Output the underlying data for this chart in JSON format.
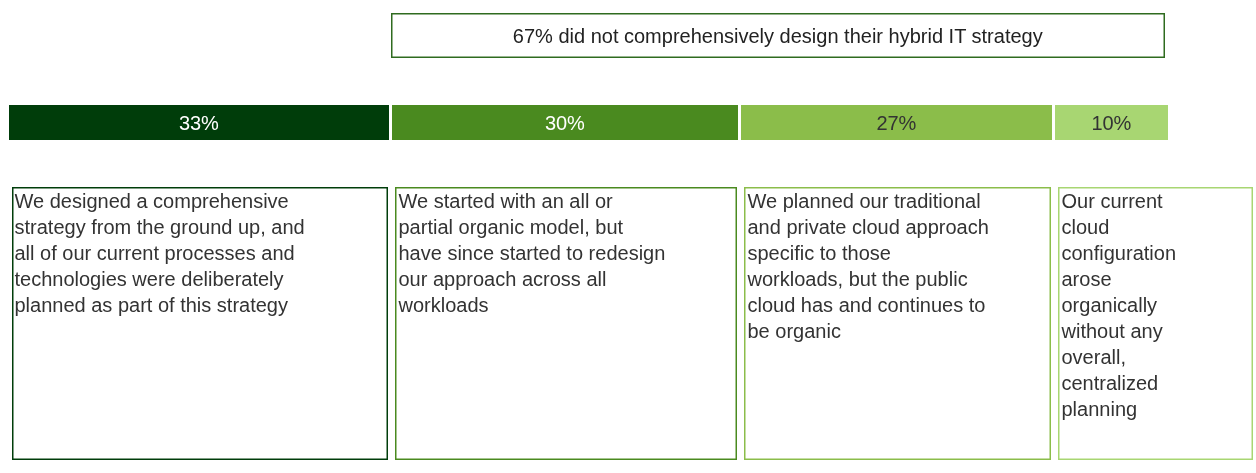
{
  "chart_data": {
    "type": "bar",
    "orientation": "horizontal",
    "stacked": true,
    "categories": [
      null
    ],
    "xlim": [
      0,
      100
    ],
    "tick_labels": false,
    "legend": false,
    "series": [
      {
        "color": "#003d0a",
        "values": [
          33
        ],
        "value_labels": [
          "33%"
        ]
      },
      {
        "color": "#4a8a1f",
        "values": [
          30
        ],
        "value_labels": [
          "30%"
        ]
      },
      {
        "color": "#8bbd4a",
        "values": [
          27
        ],
        "value_labels": [
          "27%"
        ]
      },
      {
        "color": "#a8d672",
        "values": [
          10
        ],
        "value_labels": [
          "10%"
        ]
      }
    ],
    "annotations": [
      "67% did not comprehensively design their hybrid IT strategy",
      "We designed a comprehensive strategy from the ground up, and all of our current processes and technologies were deliberately planned as part of this strategy",
      "We started with an all or partial organic model, but have since started to redesign our approach across all workloads",
      "We planned our traditional and private cloud approach specific to those workloads, but the public cloud has and continues to be organic",
      "Our current cloud configuration arose organically without any overall, centralized planning"
    ]
  }
}
